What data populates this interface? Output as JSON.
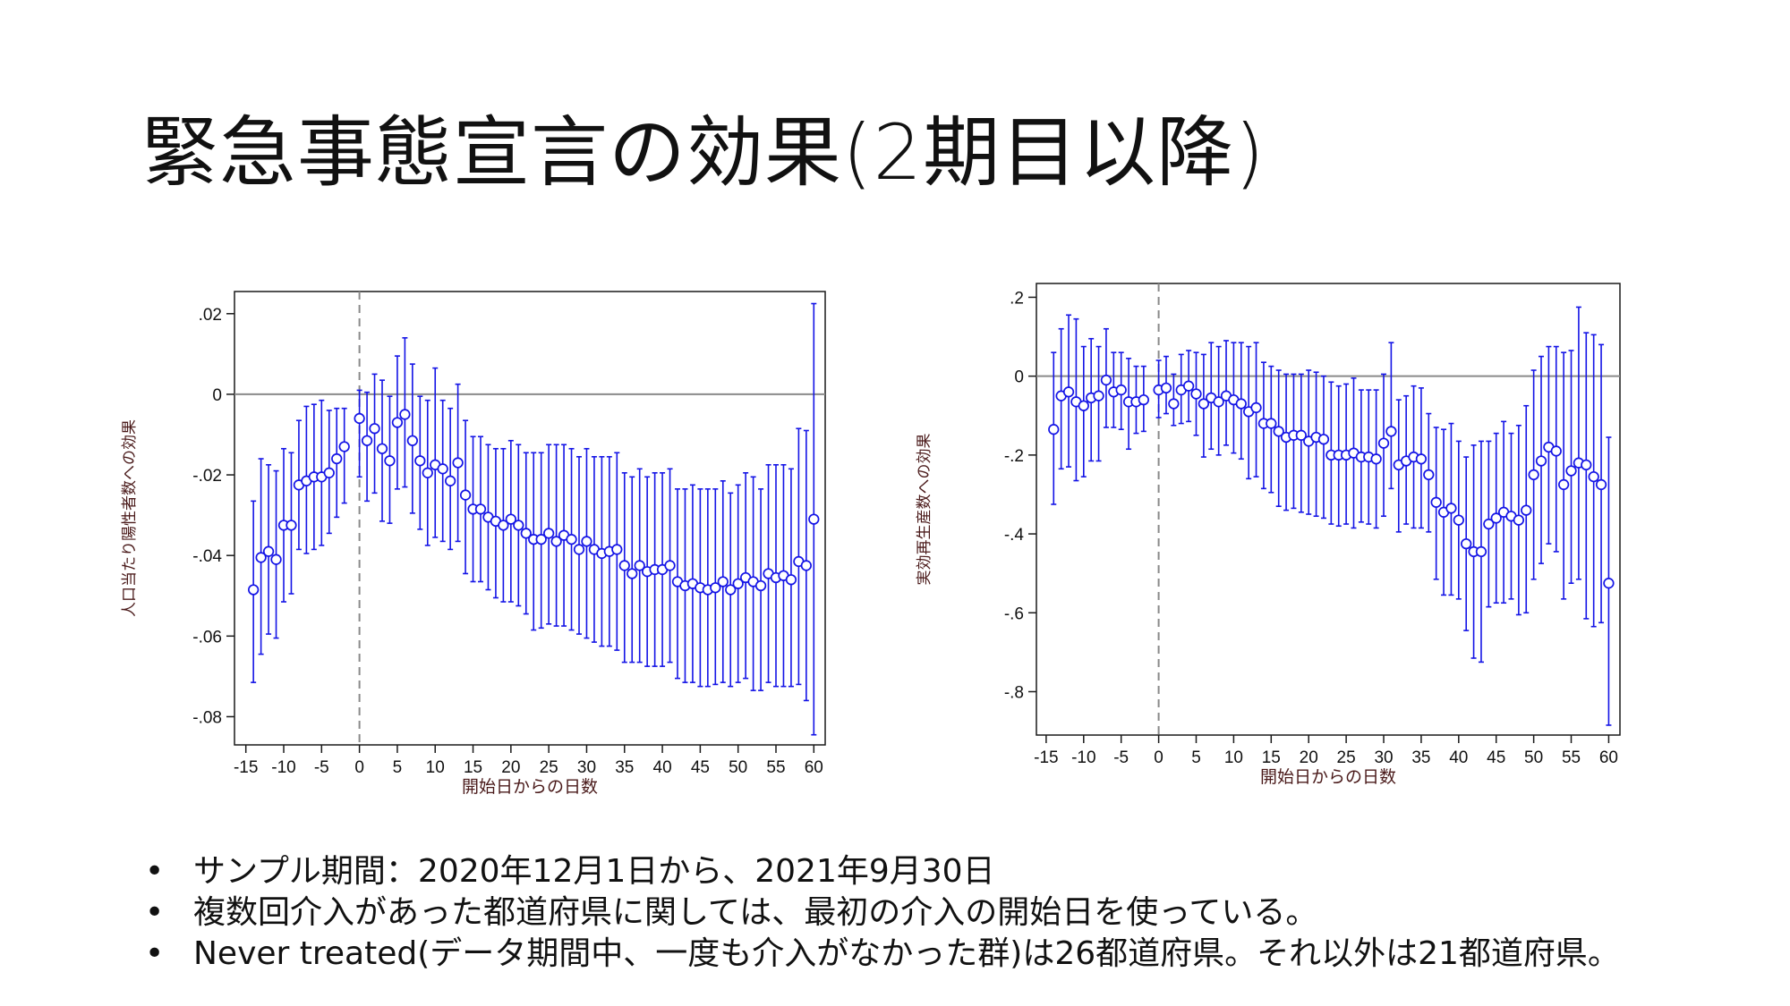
{
  "slide": {
    "title": "緊急事態宣言の効果(2期目以降)",
    "bullets": [
      "サンプル期間：2020年12月1日から、2021年9月30日",
      "複数回介入があった都道府県に関しては、最初の介入の開始日を使っている。",
      "Never treated(データ期間中、一度も介入がなかった群)は26都道府県。それ以外は21都道府県。"
    ],
    "bullet_symbol": "•"
  },
  "colors": {
    "series": "#1414e6",
    "zero_line": "#8a8a8a",
    "axis_label": "#4a1a1a"
  },
  "chart_data": [
    {
      "type": "scatter",
      "xlabel": "開始日からの日数",
      "ylabel": "人口当たり陽性者数への効果",
      "xticks": [
        -15,
        -10,
        -5,
        0,
        5,
        10,
        15,
        20,
        25,
        30,
        35,
        40,
        45,
        50,
        55,
        60
      ],
      "xtick_labels": [
        "-15",
        "-10",
        "-5",
        "0",
        "5",
        "10",
        "15",
        "20",
        "25",
        "30",
        "35",
        "40",
        "45",
        "50",
        "55",
        "60"
      ],
      "yticks": [
        0.02,
        0,
        -0.02,
        -0.04,
        -0.06,
        -0.08
      ],
      "ytick_labels": [
        ".02",
        "0",
        "-.02",
        "-.04",
        "-.06",
        "-.08"
      ],
      "xlim": [
        -16.5,
        61.5
      ],
      "ylim": [
        -0.087,
        0.0255
      ],
      "reference_lines": {
        "horizontal": 0,
        "vertical": 0
      },
      "x": [
        -14,
        -13,
        -12,
        -11,
        -10,
        -9,
        -8,
        -7,
        -6,
        -5,
        -4,
        -3,
        -2,
        -1,
        0,
        1,
        2,
        3,
        4,
        5,
        6,
        7,
        8,
        9,
        10,
        11,
        12,
        13,
        14,
        15,
        16,
        17,
        18,
        19,
        20,
        21,
        22,
        23,
        24,
        25,
        26,
        27,
        28,
        29,
        30,
        31,
        32,
        33,
        34,
        35,
        36,
        37,
        38,
        39,
        40,
        41,
        42,
        43,
        44,
        45,
        46,
        47,
        48,
        49,
        50,
        51,
        52,
        53,
        54,
        55,
        56,
        57,
        58,
        59,
        60
      ],
      "estimates": [
        -0.0485,
        -0.0405,
        -0.039,
        -0.041,
        -0.0325,
        -0.0325,
        -0.0225,
        -0.0215,
        -0.0205,
        -0.0205,
        -0.0195,
        -0.016,
        -0.013,
        null,
        -0.006,
        -0.0115,
        -0.0085,
        -0.0135,
        -0.0165,
        -0.007,
        -0.005,
        -0.0115,
        -0.0165,
        -0.0195,
        -0.0175,
        -0.0185,
        -0.0215,
        -0.017,
        -0.025,
        -0.0285,
        -0.0285,
        -0.0305,
        -0.0315,
        -0.0325,
        -0.031,
        -0.0325,
        -0.0345,
        -0.036,
        -0.036,
        -0.0345,
        -0.0365,
        -0.035,
        -0.036,
        -0.0385,
        -0.0365,
        -0.0385,
        -0.0395,
        -0.039,
        -0.0385,
        -0.0425,
        -0.0445,
        -0.0425,
        -0.044,
        -0.0435,
        -0.0435,
        -0.0425,
        -0.0465,
        -0.0475,
        -0.047,
        -0.048,
        -0.0485,
        -0.048,
        -0.0465,
        -0.0485,
        -0.047,
        -0.0455,
        -0.0465,
        -0.0475,
        -0.0445,
        -0.0455,
        -0.045,
        -0.046,
        -0.0415,
        -0.0425,
        -0.031
      ],
      "ci_lower": [
        -0.0715,
        -0.0645,
        -0.0595,
        -0.0605,
        -0.0515,
        -0.0495,
        -0.0385,
        -0.0395,
        -0.0385,
        -0.0375,
        -0.0345,
        -0.0305,
        -0.027,
        null,
        -0.0205,
        -0.0265,
        -0.0245,
        -0.0315,
        -0.032,
        -0.0235,
        -0.023,
        -0.0295,
        -0.0335,
        -0.0375,
        -0.0355,
        -0.0365,
        -0.0385,
        -0.0365,
        -0.0445,
        -0.0465,
        -0.0465,
        -0.0485,
        -0.0505,
        -0.0515,
        -0.0515,
        -0.0525,
        -0.0545,
        -0.0585,
        -0.058,
        -0.057,
        -0.0575,
        -0.0575,
        -0.0585,
        -0.0595,
        -0.0605,
        -0.0615,
        -0.0625,
        -0.0625,
        -0.0635,
        -0.0665,
        -0.0665,
        -0.0665,
        -0.0675,
        -0.0675,
        -0.0675,
        -0.0665,
        -0.0705,
        -0.0715,
        -0.0715,
        -0.0725,
        -0.0725,
        -0.072,
        -0.0715,
        -0.0725,
        -0.0715,
        -0.0705,
        -0.0735,
        -0.0735,
        -0.0715,
        -0.0725,
        -0.0725,
        -0.0725,
        -0.072,
        -0.076,
        -0.0845
      ],
      "ci_upper": [
        -0.0265,
        -0.016,
        -0.0175,
        -0.019,
        -0.0135,
        -0.0145,
        -0.0065,
        -0.003,
        -0.0025,
        -0.0015,
        -0.004,
        -0.0035,
        -0.0035,
        null,
        0.001,
        0.0005,
        0.005,
        0.0035,
        -0.0005,
        0.0095,
        0.014,
        0.0075,
        -0.0005,
        -0.0015,
        0.0065,
        -0.0015,
        -0.0035,
        0.0025,
        -0.0065,
        -0.0105,
        -0.0105,
        -0.0125,
        -0.0135,
        -0.0135,
        -0.0115,
        -0.0125,
        -0.0145,
        -0.0145,
        -0.0145,
        -0.0125,
        -0.0125,
        -0.0125,
        -0.0135,
        -0.0155,
        -0.0135,
        -0.0155,
        -0.0155,
        -0.0155,
        -0.0145,
        -0.0195,
        -0.0205,
        -0.0185,
        -0.0205,
        -0.0195,
        -0.0195,
        -0.0185,
        -0.0235,
        -0.0235,
        -0.0225,
        -0.0235,
        -0.0235,
        -0.0235,
        -0.0215,
        -0.0245,
        -0.0225,
        -0.0195,
        -0.0205,
        -0.0235,
        -0.0175,
        -0.0175,
        -0.0175,
        -0.0185,
        -0.0085,
        -0.009,
        0.0225
      ]
    },
    {
      "type": "scatter",
      "xlabel": "開始日からの日数",
      "ylabel": "実効再生産数への効果",
      "xticks": [
        -15,
        -10,
        -5,
        0,
        5,
        10,
        15,
        20,
        25,
        30,
        35,
        40,
        45,
        50,
        55,
        60
      ],
      "xtick_labels": [
        "-15",
        "-10",
        "-5",
        "0",
        "5",
        "10",
        "15",
        "20",
        "25",
        "30",
        "35",
        "40",
        "45",
        "50",
        "55",
        "60"
      ],
      "yticks": [
        0.2,
        0,
        -0.2,
        -0.4,
        -0.6,
        -0.8
      ],
      "ytick_labels": [
        ".2",
        "0",
        "-.2",
        "-.4",
        "-.6",
        "-.8"
      ],
      "xlim": [
        -16.3,
        61.5
      ],
      "ylim": [
        -0.91,
        0.235
      ],
      "reference_lines": {
        "horizontal": 0,
        "vertical": 0
      },
      "x": [
        -14,
        -13,
        -12,
        -11,
        -10,
        -9,
        -8,
        -7,
        -6,
        -5,
        -4,
        -3,
        -2,
        -1,
        0,
        1,
        2,
        3,
        4,
        5,
        6,
        7,
        8,
        9,
        10,
        11,
        12,
        13,
        14,
        15,
        16,
        17,
        18,
        19,
        20,
        21,
        22,
        23,
        24,
        25,
        26,
        27,
        28,
        29,
        30,
        31,
        32,
        33,
        34,
        35,
        36,
        37,
        38,
        39,
        40,
        41,
        42,
        43,
        44,
        45,
        46,
        47,
        48,
        49,
        50,
        51,
        52,
        53,
        54,
        55,
        56,
        57,
        58,
        59,
        60
      ],
      "estimates": [
        -0.135,
        -0.05,
        -0.04,
        -0.065,
        -0.075,
        -0.055,
        -0.05,
        -0.01,
        -0.04,
        -0.035,
        -0.065,
        -0.065,
        -0.06,
        null,
        -0.035,
        -0.03,
        -0.07,
        -0.035,
        -0.025,
        -0.045,
        -0.07,
        -0.055,
        -0.065,
        -0.05,
        -0.06,
        -0.07,
        -0.09,
        -0.08,
        -0.12,
        -0.12,
        -0.14,
        -0.155,
        -0.15,
        -0.15,
        -0.165,
        -0.155,
        -0.16,
        -0.2,
        -0.2,
        -0.2,
        -0.195,
        -0.205,
        -0.205,
        -0.21,
        -0.17,
        -0.14,
        -0.225,
        -0.215,
        -0.205,
        -0.21,
        -0.25,
        -0.32,
        -0.345,
        -0.335,
        -0.365,
        -0.425,
        -0.445,
        -0.445,
        -0.375,
        -0.36,
        -0.345,
        -0.355,
        -0.365,
        -0.34,
        -0.25,
        -0.215,
        -0.18,
        -0.19,
        -0.275,
        -0.24,
        -0.22,
        -0.225,
        -0.255,
        -0.275,
        -0.525
      ],
      "ci_lower": [
        -0.325,
        -0.235,
        -0.23,
        -0.265,
        -0.255,
        -0.215,
        -0.215,
        -0.13,
        -0.13,
        -0.135,
        -0.185,
        -0.145,
        -0.14,
        null,
        -0.105,
        -0.095,
        -0.125,
        -0.12,
        -0.115,
        -0.15,
        -0.205,
        -0.185,
        -0.2,
        -0.175,
        -0.195,
        -0.21,
        -0.26,
        -0.255,
        -0.285,
        -0.295,
        -0.33,
        -0.34,
        -0.335,
        -0.345,
        -0.35,
        -0.355,
        -0.36,
        -0.375,
        -0.38,
        -0.375,
        -0.385,
        -0.37,
        -0.375,
        -0.385,
        -0.355,
        -0.285,
        -0.395,
        -0.375,
        -0.385,
        -0.385,
        -0.395,
        -0.515,
        -0.555,
        -0.555,
        -0.565,
        -0.645,
        -0.715,
        -0.725,
        -0.585,
        -0.575,
        -0.575,
        -0.565,
        -0.605,
        -0.6,
        -0.515,
        -0.475,
        -0.425,
        -0.445,
        -0.565,
        -0.525,
        -0.515,
        -0.615,
        -0.635,
        -0.625,
        -0.885
      ],
      "ci_upper": [
        0.06,
        0.12,
        0.155,
        0.145,
        0.075,
        0.095,
        0.075,
        0.12,
        0.06,
        0.06,
        0.045,
        0.025,
        0.025,
        null,
        0.04,
        0.05,
        0.005,
        0.055,
        0.065,
        0.06,
        0.055,
        0.085,
        0.075,
        0.09,
        0.085,
        0.085,
        0.075,
        0.085,
        0.035,
        0.025,
        0.015,
        0.005,
        0.005,
        0.005,
        0.015,
        0.01,
        0.0,
        -0.015,
        -0.025,
        -0.02,
        -0.005,
        -0.035,
        -0.035,
        -0.035,
        0.005,
        0.085,
        -0.06,
        -0.05,
        -0.025,
        -0.03,
        -0.095,
        -0.13,
        -0.135,
        -0.12,
        -0.165,
        -0.205,
        -0.175,
        -0.165,
        -0.165,
        -0.145,
        -0.115,
        -0.145,
        -0.125,
        -0.075,
        0.015,
        0.05,
        0.075,
        0.075,
        0.06,
        0.065,
        0.175,
        0.11,
        0.105,
        0.08,
        -0.155
      ]
    }
  ]
}
